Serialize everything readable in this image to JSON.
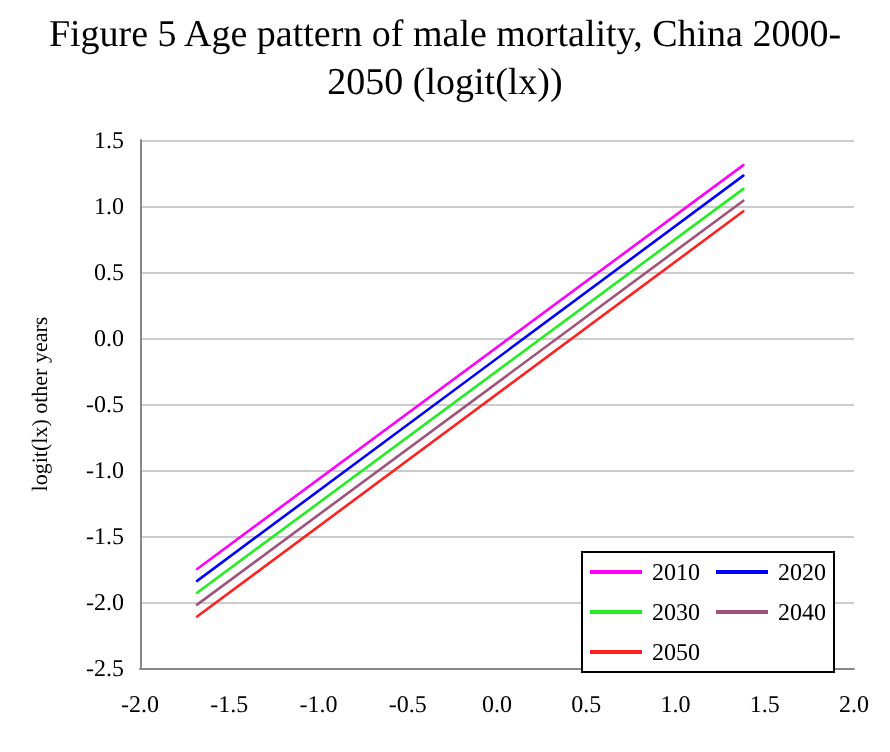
{
  "chart_data": {
    "type": "line",
    "title": "Figure 5 Age pattern of male mortality, China 2000-2050 (logit(lx))",
    "ylabel": "logit(lx) other years",
    "x": [
      -1.68,
      1.38
    ],
    "series": [
      {
        "name": "2010",
        "color": "#ff00ff",
        "values": [
          -1.75,
          1.31
        ]
      },
      {
        "name": "2020",
        "color": "#0000ff",
        "values": [
          -1.84,
          1.23
        ]
      },
      {
        "name": "2030",
        "color": "#22ee22",
        "values": [
          -1.93,
          1.13
        ]
      },
      {
        "name": "2040",
        "color": "#a0527a",
        "values": [
          -2.02,
          1.04
        ]
      },
      {
        "name": "2050",
        "color": "#ff2020",
        "values": [
          -2.11,
          0.96
        ]
      }
    ],
    "xlim": [
      -2,
      2
    ],
    "xticks": [
      {
        "value": -2,
        "label": "-2.0"
      },
      -1.5,
      {
        "value": -1,
        "label": "-1.0"
      },
      -0.5,
      {
        "value": 0,
        "label": "0.0"
      },
      0.5,
      {
        "value": 1,
        "label": "1.0"
      },
      1.5,
      {
        "value": 2,
        "label": "2.0"
      }
    ],
    "ylim": [
      -2.5,
      1.5
    ],
    "yticks": [
      -2.5,
      {
        "value": -2,
        "label": "-2.0"
      },
      -1.5,
      {
        "value": -1,
        "label": "-1.0"
      },
      -0.5,
      {
        "value": 0,
        "label": "0.0"
      },
      0.5,
      {
        "value": 1,
        "label": "1.0"
      },
      1.5
    ],
    "grid": "y",
    "legend": "bottom right",
    "marker": "none",
    "line_style": "solid"
  }
}
